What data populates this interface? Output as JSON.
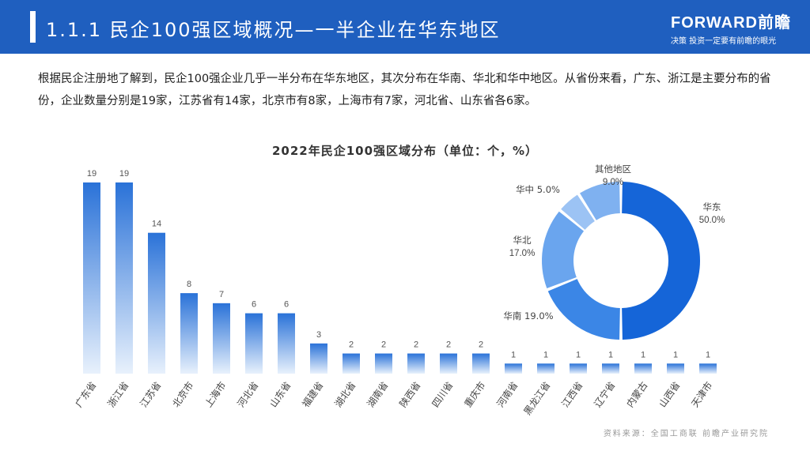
{
  "header": {
    "title": "1.1.1 民企100强区域概况—一半企业在华东地区"
  },
  "logo": {
    "brand": "FORWARD前瞻",
    "slogan": "决策 投资一定要有前瞻的眼光"
  },
  "intro": "根据民企注册地了解到，民企100强企业几乎一半分布在华东地区，其次分布在华南、华北和华中地区。从省份来看，广东、浙江是主要分布的省份，企业数量分别是19家，江苏省有14家，北京市有8家，上海市有7家，河北省、山东省各6家。",
  "source": "资料来源：全国工商联 前瞻产业研究院",
  "colors": {
    "header": "#1f5fbf",
    "bar_top": "#2a72d8",
    "bar_bottom": "#e8f1fc"
  },
  "chart_data": [
    {
      "type": "bar",
      "title": "2022年民企100强区域分布（单位：个，%）",
      "categories": [
        "广东省",
        "浙江省",
        "江苏省",
        "北京市",
        "上海市",
        "河北省",
        "山东省",
        "福建省",
        "湖北省",
        "湖南省",
        "陕西省",
        "四川省",
        "重庆市",
        "河南省",
        "黑龙江省",
        "江西省",
        "辽宁省",
        "内蒙古",
        "山西省",
        "天津市"
      ],
      "values": [
        19,
        19,
        14,
        8,
        7,
        6,
        6,
        3,
        2,
        2,
        2,
        2,
        2,
        1,
        1,
        1,
        1,
        1,
        1,
        1
      ],
      "ylim": [
        0,
        19
      ]
    },
    {
      "type": "pie",
      "donut": true,
      "slices": [
        {
          "label": "华东",
          "value": 50.0,
          "value_label": "50.0%",
          "color": "#1565d8"
        },
        {
          "label": "华南",
          "value": 19.0,
          "value_label": "19.0%",
          "color": "#3b86e6"
        },
        {
          "label": "华北",
          "value": 17.0,
          "value_label": "17.0%",
          "color": "#6aa5ee"
        },
        {
          "label": "华中",
          "value": 5.0,
          "value_label": "5.0%",
          "color": "#9cc3f4"
        },
        {
          "label": "其他地区",
          "value": 9.0,
          "value_label": "9.0%",
          "color": "#7fb1f0"
        }
      ]
    }
  ]
}
